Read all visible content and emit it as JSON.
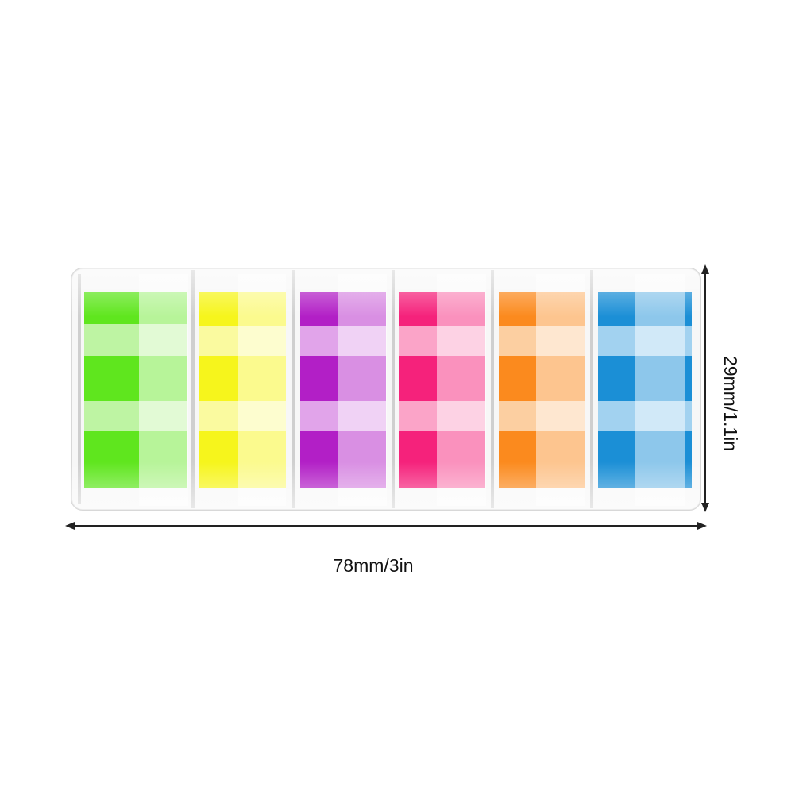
{
  "dimensions": {
    "height_label": "29mm/1.1in",
    "width_label": "78mm/3in"
  }
}
